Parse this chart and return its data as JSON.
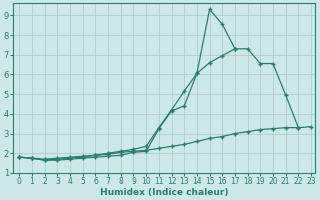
{
  "xlabel": "Humidex (Indice chaleur)",
  "x_values": [
    0,
    1,
    2,
    3,
    4,
    5,
    6,
    7,
    8,
    9,
    10,
    11,
    12,
    13,
    14,
    15,
    16,
    17,
    18,
    19,
    20,
    21,
    22,
    23
  ],
  "line1": [
    1.8,
    1.75,
    1.65,
    1.65,
    1.7,
    1.75,
    1.8,
    1.85,
    1.9,
    2.05,
    2.1,
    3.25,
    4.15,
    4.4,
    6.05,
    9.3,
    8.55,
    7.3,
    null,
    null,
    null,
    null,
    null,
    null
  ],
  "line2": [
    1.8,
    1.75,
    1.65,
    1.7,
    1.75,
    1.8,
    1.9,
    2.0,
    2.1,
    2.2,
    2.35,
    3.3,
    4.2,
    5.15,
    6.05,
    6.6,
    6.95,
    7.3,
    7.3,
    6.55,
    6.55,
    4.95,
    3.3,
    null
  ],
  "line3": [
    1.8,
    1.75,
    1.7,
    1.75,
    1.8,
    1.85,
    1.9,
    1.95,
    2.05,
    2.1,
    2.15,
    2.25,
    2.35,
    2.45,
    2.6,
    2.75,
    2.85,
    3.0,
    3.1,
    3.2,
    3.25,
    3.3,
    3.3,
    3.35
  ],
  "line_color": "#2d7d6b",
  "bg_color": "#cce8e8",
  "grid_color": "#aac8c8",
  "ylim_min": 1.3,
  "ylim_max": 9.6,
  "xlim_min": -0.5,
  "xlim_max": 23.3,
  "yticks": [
    1,
    2,
    3,
    4,
    5,
    6,
    7,
    8,
    9
  ],
  "xticks": [
    0,
    1,
    2,
    3,
    4,
    5,
    6,
    7,
    8,
    9,
    10,
    11,
    12,
    13,
    14,
    15,
    16,
    17,
    18,
    19,
    20,
    21,
    22,
    23
  ],
  "tick_fontsize": 5.5,
  "xlabel_fontsize": 6.5,
  "marker": "+",
  "markersize": 3.5,
  "linewidth": 0.9
}
